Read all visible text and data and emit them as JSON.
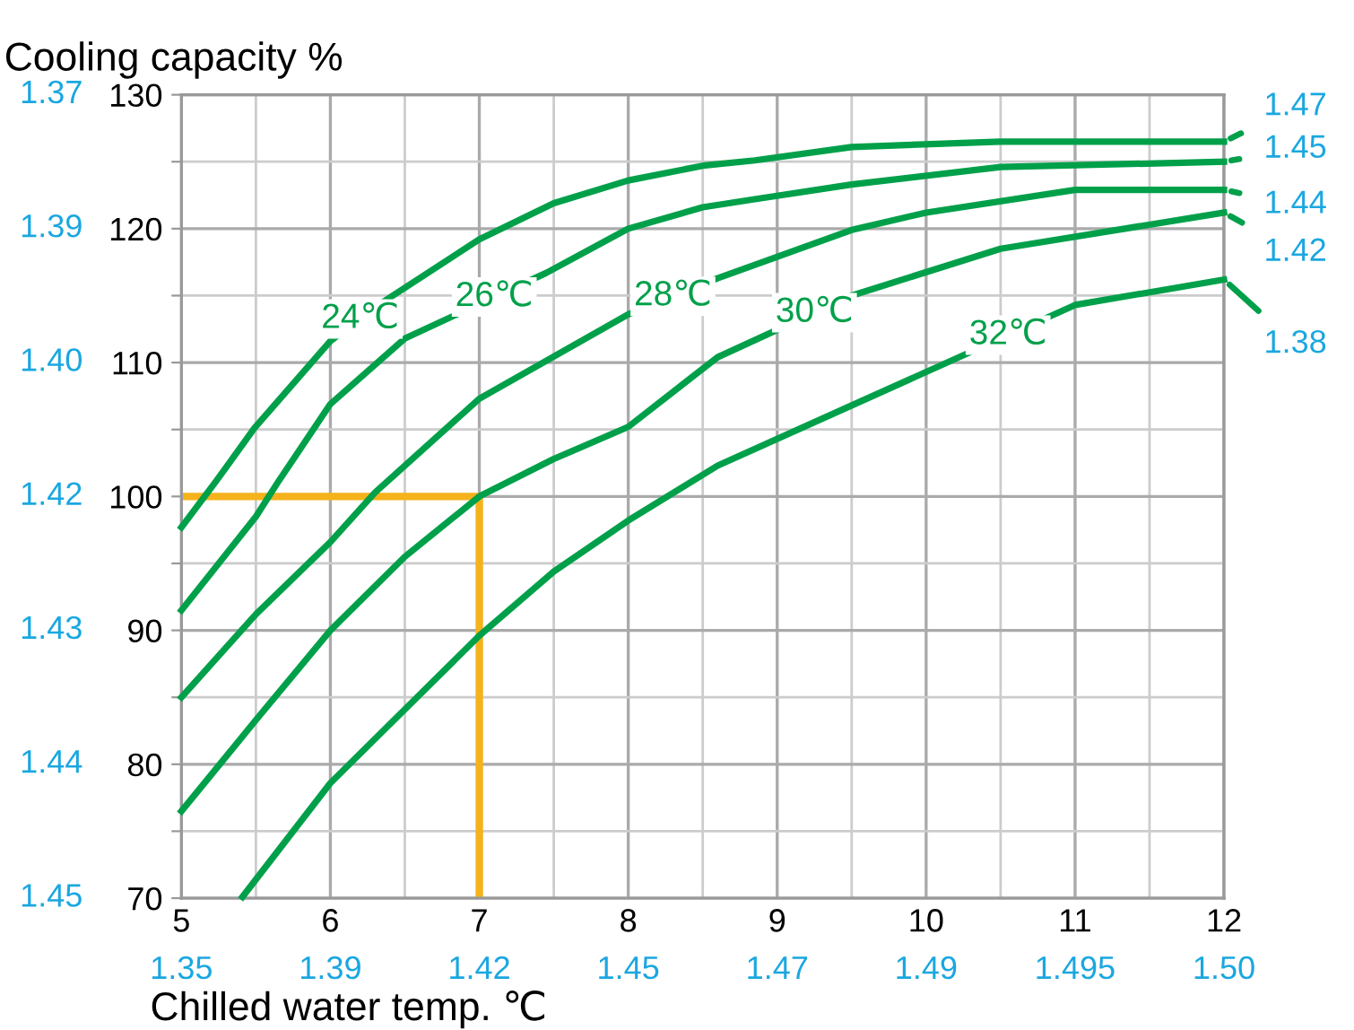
{
  "chart_data": {
    "type": "line",
    "ylabel": "Cooling capacity %",
    "xlabel": "Chilled water temp. ℃",
    "xlim": [
      5,
      12
    ],
    "ylim": [
      70,
      130
    ],
    "xticks": [
      5,
      {
        "value": 5.5,
        "label": null
      },
      6,
      {
        "value": 6.5,
        "label": null
      },
      7,
      {
        "value": 7.5,
        "label": null
      },
      8,
      {
        "value": 8.5,
        "label": null
      },
      9,
      {
        "value": 9.5,
        "label": null
      },
      10,
      {
        "value": 10.5,
        "label": null
      },
      11,
      {
        "value": 11.5,
        "label": null
      },
      12
    ],
    "yticks": [
      70,
      {
        "value": 75,
        "label": null
      },
      80,
      {
        "value": 85,
        "label": null
      },
      90,
      {
        "value": 95,
        "label": null
      },
      100,
      {
        "value": 105,
        "label": null
      },
      110,
      {
        "value": 115,
        "label": null
      },
      120,
      {
        "value": 125,
        "label": null
      },
      130
    ],
    "grid": true,
    "legend": false,
    "marker": "none",
    "line_style": "solid",
    "series": [
      {
        "name": "24℃",
        "color": "#00a04a",
        "x": [
          5,
          5.23,
          5.49,
          6,
          6.35,
          7,
          7.5,
          8,
          8.5,
          8.85,
          9.5,
          10.5,
          12
        ],
        "values": [
          97.7,
          101.1,
          105.1,
          111.6,
          114.5,
          119.2,
          121.9,
          123.6,
          124.7,
          125.1,
          126.1,
          126.5,
          126.5
        ]
      },
      {
        "name": "26℃",
        "color": "#00a04a",
        "x": [
          5,
          5.5,
          5.65,
          6,
          6.5,
          7.45,
          8,
          8.5,
          8.85,
          9.5,
          10.5,
          12
        ],
        "values": [
          91.5,
          98.5,
          101.1,
          106.9,
          111.8,
          116.7,
          120,
          121.6,
          122.2,
          123.3,
          124.6,
          125
        ]
      },
      {
        "name": "28℃",
        "color": "#00a04a",
        "x": [
          5,
          5.5,
          6,
          6.3,
          7,
          8,
          8.6,
          9.5,
          10,
          11,
          12
        ],
        "values": [
          85,
          91.2,
          96.6,
          100.3,
          107.3,
          113.6,
          116.3,
          119.9,
          121.2,
          122.9,
          122.9
        ]
      },
      {
        "name": "30℃",
        "color": "#00a04a",
        "x": [
          5,
          5.5,
          6,
          6.5,
          7,
          7.5,
          8,
          8.6,
          9.5,
          10.5,
          12
        ],
        "values": [
          76.5,
          83.3,
          90,
          95.5,
          100,
          102.8,
          105.2,
          110.4,
          115,
          118.5,
          121.2
        ]
      },
      {
        "name": "32℃",
        "color": "#00a04a",
        "x": [
          5.41,
          6,
          7,
          7.5,
          8,
          8.6,
          9.5,
          11,
          12
        ],
        "values": [
          70.1,
          78.6,
          89.6,
          94.4,
          98.2,
          102.3,
          106.8,
          114.3,
          116.2
        ]
      }
    ],
    "annotations": [
      "1.37",
      "1.39",
      "1.40",
      "1.42",
      "1.43",
      "1.44",
      "1.45",
      "1.35",
      "1.39",
      "1.42",
      "1.45",
      "1.47",
      "1.49",
      "1.495",
      "1.50",
      "1.47",
      "1.45",
      "1.44",
      "1.42",
      "1.38"
    ],
    "ref_lines": [
      {
        "axis": "y",
        "value": 100,
        "color": "#f5b21b"
      },
      {
        "axis": "x",
        "value": 7,
        "color": "#f5b21b"
      }
    ]
  }
}
